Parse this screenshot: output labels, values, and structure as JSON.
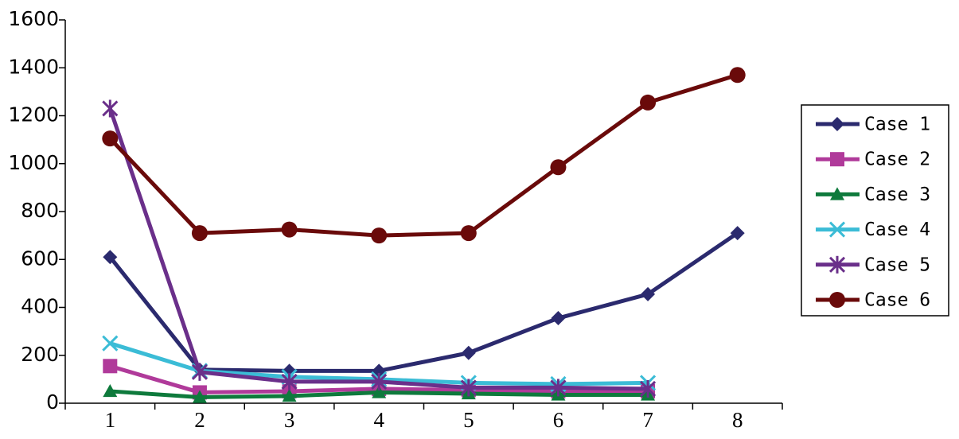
{
  "chart_data": {
    "type": "line",
    "categories": [
      "1",
      "2",
      "3",
      "4",
      "5",
      "6",
      "7",
      "8"
    ],
    "ylim": [
      0,
      1600
    ],
    "yticks": [
      0,
      200,
      400,
      600,
      800,
      1000,
      1200,
      1400,
      1600
    ],
    "legend": "right",
    "series": [
      {
        "name": "Case 1",
        "color": "#2b2a6e",
        "marker": "diamond",
        "values": [
          610,
          140,
          135,
          135,
          210,
          355,
          455,
          710
        ]
      },
      {
        "name": "Case 2",
        "color": "#b03a9a",
        "marker": "square",
        "values": [
          155,
          45,
          50,
          60,
          55,
          50,
          50,
          null
        ]
      },
      {
        "name": "Case 3",
        "color": "#0e7a3c",
        "marker": "triangle",
        "values": [
          50,
          25,
          30,
          45,
          40,
          35,
          35,
          null
        ]
      },
      {
        "name": "Case 4",
        "color": "#3bbcd6",
        "marker": "x",
        "values": [
          250,
          135,
          110,
          100,
          85,
          80,
          85,
          null
        ]
      },
      {
        "name": "Case 5",
        "color": "#6a2f8a",
        "marker": "asterisk",
        "values": [
          1230,
          130,
          90,
          90,
          65,
          65,
          60,
          null
        ]
      },
      {
        "name": "Case 6",
        "color": "#6a0a0a",
        "marker": "circle",
        "values": [
          1105,
          710,
          725,
          700,
          710,
          985,
          1255,
          1370
        ]
      }
    ]
  }
}
